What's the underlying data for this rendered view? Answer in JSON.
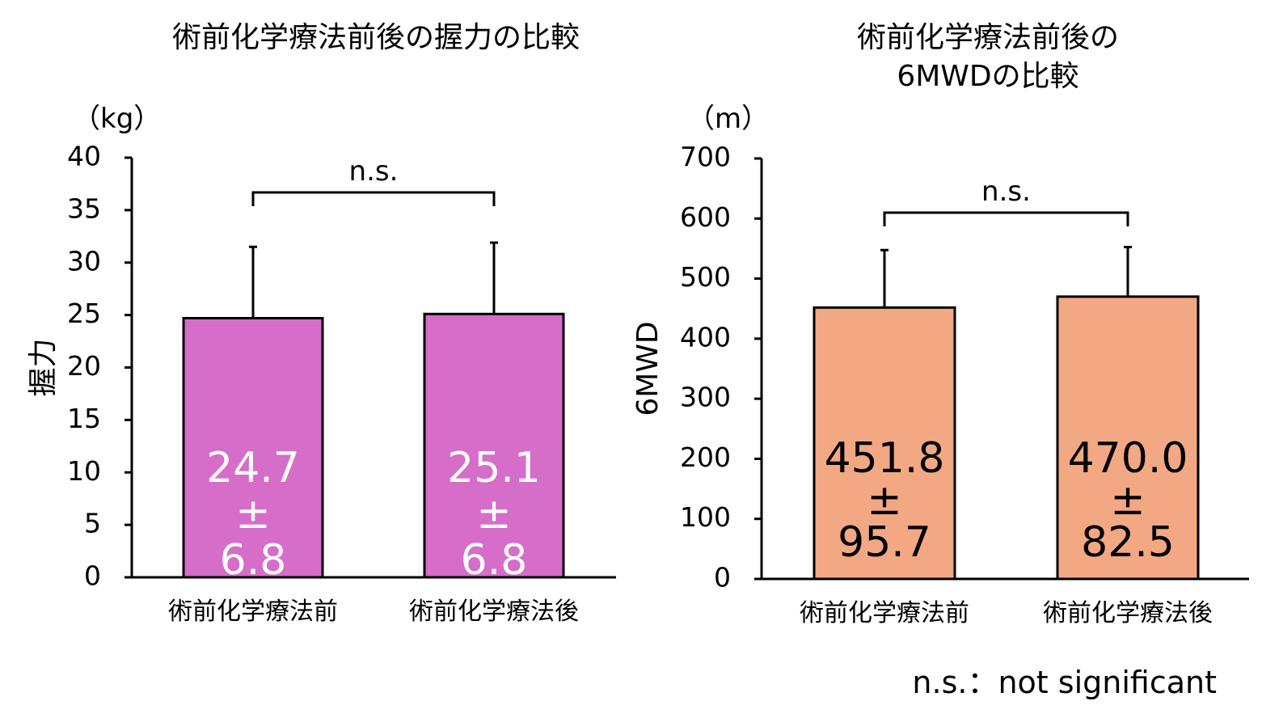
{
  "chart_data": [
    {
      "type": "bar",
      "title": "術前化学療法前後の握力の比較",
      "unit": "（kg）",
      "ylabel": "握力",
      "ylim": [
        0,
        40
      ],
      "yticks": [
        0,
        5,
        10,
        15,
        20,
        25,
        30,
        35,
        40
      ],
      "categories": [
        "術前化学療法前",
        "術前化学療法後"
      ],
      "values": [
        24.7,
        25.1
      ],
      "errors": [
        6.8,
        6.8
      ],
      "bar_labels": [
        [
          "24.7",
          "±",
          "6.8"
        ],
        [
          "25.1",
          "±",
          "6.8"
        ]
      ],
      "significance": "n.s.",
      "bar_color": "#d56dc9",
      "bar_text_color": "#ffffff"
    },
    {
      "type": "bar",
      "title": [
        "術前化学療法前後の",
        "6MWDの比較"
      ],
      "unit": "（m）",
      "ylabel": "6MWD",
      "ylim": [
        0,
        700
      ],
      "yticks": [
        0,
        100,
        200,
        300,
        400,
        500,
        600,
        700
      ],
      "categories": [
        "術前化学療法前",
        "術前化学療法後"
      ],
      "values": [
        451.8,
        470.0
      ],
      "errors": [
        95.7,
        82.5
      ],
      "bar_labels": [
        [
          "451.8",
          "±",
          "95.7"
        ],
        [
          "470.0",
          "±",
          "82.5"
        ]
      ],
      "significance": "n.s.",
      "bar_color": "#f2a882",
      "bar_text_color": "#000000"
    }
  ],
  "footnote": "n.s.：not significant"
}
